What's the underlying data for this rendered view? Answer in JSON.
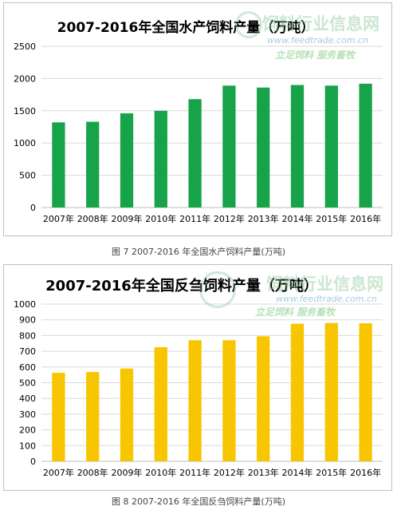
{
  "watermark": {
    "name": "饲料行业信息网",
    "url": "www.feedtrade.com.cn",
    "slogan": "立足饲料  服务畜牧"
  },
  "colors": {
    "chart1_bar": "#17a34a",
    "chart2_bar": "#f7c600",
    "grid": "#d9d9d9",
    "axis": "#bfbfbf"
  },
  "chart_data": [
    {
      "type": "bar",
      "title": "2007-2016年全国水产饲料产量（万吨）",
      "categories": [
        "2007年",
        "2008年",
        "2009年",
        "2010年",
        "2011年",
        "2012年",
        "2013年",
        "2014年",
        "2015年",
        "2016年"
      ],
      "values": [
        1320,
        1330,
        1460,
        1500,
        1680,
        1890,
        1860,
        1900,
        1890,
        1920
      ],
      "ylim": [
        0,
        2500
      ],
      "yticks": [
        "0",
        "500",
        "1000",
        "1500",
        "2000",
        "2500"
      ],
      "grid": true,
      "caption": "图 7 2007-2016 年全国水产饲料产量(万吨)"
    },
    {
      "type": "bar",
      "title": "2007-2016年全国反刍饲料产量（万吨）",
      "categories": [
        "2007年",
        "2008年",
        "2009年",
        "2010年",
        "2011年",
        "2012年",
        "2013年",
        "2014年",
        "2015年",
        "2016年"
      ],
      "values": [
        563,
        568,
        590,
        726,
        770,
        770,
        795,
        875,
        880,
        878
      ],
      "ylim": [
        0,
        1000
      ],
      "yticks": [
        "0",
        "100",
        "200",
        "300",
        "400",
        "500",
        "600",
        "700",
        "800",
        "900",
        "1000"
      ],
      "grid": true,
      "caption": "图 8 2007-2016 年全国反刍饲料产量(万吨)"
    }
  ]
}
